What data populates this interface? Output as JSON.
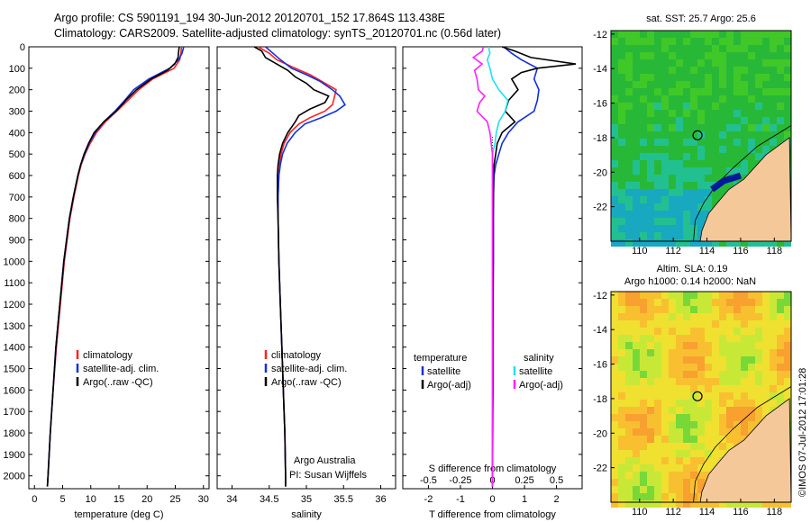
{
  "header": {
    "line1": "Argo profile: CS 5901191_194 30-Jun-2012 20120701_152 17.864S 113.438E",
    "line2": "Climatology: CARS2009. Satellite-adjusted climatology: synTS_20120701.nc (0.56d later)"
  },
  "colors": {
    "climatology": "#ff2020",
    "satellite": "#1030e0",
    "argo": "#000000",
    "satellite_salinity": "#20e0f0",
    "argo_salinity": "#ff20ff",
    "land": "#f5c89a"
  },
  "chart_data": [
    {
      "type": "line",
      "id": "temperature",
      "xlabel": "temperature (deg C)",
      "ylabel": "",
      "xlim": [
        -1,
        31
      ],
      "ylim": [
        2060,
        0
      ],
      "xticks": [
        "0",
        "5",
        "10",
        "15",
        "20",
        "25",
        "30"
      ],
      "yticks": [
        "0",
        "100",
        "200",
        "300",
        "400",
        "500",
        "600",
        "700",
        "800",
        "900",
        "1000",
        "1100",
        "1200",
        "1300",
        "1400",
        "1500",
        "1600",
        "1700",
        "1800",
        "1900",
        "2000"
      ],
      "legend": [
        "climatology",
        "satellite-adj. clim.",
        "Argo(..raw -QC)"
      ],
      "series": [
        {
          "name": "climatology",
          "depth": [
            0,
            30,
            60,
            100,
            150,
            200,
            250,
            300,
            350,
            400,
            450,
            500,
            550,
            600,
            700,
            800,
            900,
            1000,
            1200,
            1400,
            1600,
            1800,
            2000,
            2050
          ],
          "values": [
            26.1,
            26.0,
            25.8,
            24.8,
            21.0,
            18.5,
            16.6,
            14.6,
            12.6,
            11.0,
            9.9,
            9.0,
            8.3,
            7.8,
            7.0,
            6.3,
            5.8,
            5.3,
            4.6,
            3.9,
            3.3,
            2.8,
            2.4,
            2.3
          ]
        },
        {
          "name": "satellite-adj. clim.",
          "depth": [
            0,
            30,
            60,
            100,
            150,
            200,
            250,
            300,
            350,
            400,
            450,
            500,
            550,
            600,
            700,
            800,
            900,
            1000,
            1200,
            1400,
            1600,
            1800,
            2000,
            2050
          ],
          "values": [
            26.5,
            26.2,
            25.6,
            24.0,
            20.3,
            17.6,
            16.0,
            14.3,
            12.3,
            10.8,
            9.7,
            8.9,
            8.2,
            7.7,
            6.9,
            6.2,
            5.7,
            5.2,
            4.5,
            3.8,
            3.3,
            2.8,
            2.4,
            2.3
          ]
        },
        {
          "name": "Argo(..raw -QC)",
          "depth": [
            0,
            20,
            50,
            80,
            110,
            150,
            200,
            250,
            300,
            350,
            400,
            450,
            500,
            550,
            600,
            700,
            800,
            900,
            1000,
            1200,
            1400,
            1600,
            1800,
            2000,
            2050
          ],
          "values": [
            25.7,
            25.6,
            25.5,
            24.9,
            23.6,
            20.7,
            18.1,
            16.2,
            14.5,
            12.3,
            10.6,
            9.6,
            8.8,
            8.2,
            7.7,
            6.9,
            6.2,
            5.7,
            5.2,
            4.5,
            3.8,
            3.3,
            2.8,
            2.4,
            2.3
          ]
        }
      ]
    },
    {
      "type": "line",
      "id": "salinity",
      "xlabel": "salinity",
      "xlim": [
        33.8,
        36.2
      ],
      "ylim": [
        2060,
        0
      ],
      "xticks": [
        "34",
        "34.5",
        "35",
        "35.5",
        "36"
      ],
      "legend": [
        "climatology",
        "satellite-adj. clim.",
        "Argo(..raw -QC)"
      ],
      "annotations": [
        "Argo Australia",
        "PI: Susan Wijffels"
      ],
      "series": [
        {
          "name": "climatology",
          "depth": [
            0,
            30,
            60,
            100,
            130,
            160,
            200,
            230,
            270,
            300,
            330,
            360,
            400,
            450,
            500,
            550,
            600,
            700,
            800,
            1000,
            1200,
            1400,
            1600,
            1800,
            2000,
            2050
          ],
          "values": [
            34.35,
            34.5,
            34.6,
            34.85,
            35.05,
            35.2,
            35.4,
            35.38,
            35.35,
            35.25,
            35.05,
            34.9,
            34.78,
            34.7,
            34.66,
            34.64,
            34.63,
            34.62,
            34.62,
            34.63,
            34.65,
            34.67,
            34.69,
            34.71,
            34.72,
            34.72
          ]
        },
        {
          "name": "satellite-adj. clim.",
          "depth": [
            0,
            30,
            60,
            100,
            130,
            160,
            200,
            230,
            270,
            300,
            330,
            360,
            400,
            450,
            500,
            550,
            600,
            700,
            800,
            1000,
            1200,
            1400,
            1600,
            1800,
            2000,
            2050
          ],
          "values": [
            34.45,
            34.55,
            34.65,
            34.8,
            35.0,
            35.18,
            35.35,
            35.45,
            35.52,
            35.4,
            35.2,
            34.98,
            34.85,
            34.74,
            34.68,
            34.65,
            34.63,
            34.62,
            34.62,
            34.63,
            34.65,
            34.67,
            34.69,
            34.71,
            34.72,
            34.72
          ]
        },
        {
          "name": "Argo(..raw -QC)",
          "depth": [
            0,
            20,
            50,
            80,
            110,
            140,
            170,
            200,
            230,
            260,
            290,
            320,
            350,
            400,
            450,
            500,
            550,
            600,
            700,
            800,
            1000,
            1200,
            1400,
            1600,
            1800,
            2000,
            2050
          ],
          "values": [
            34.3,
            34.4,
            34.45,
            34.6,
            34.75,
            34.85,
            35.0,
            35.1,
            35.3,
            35.25,
            35.05,
            34.9,
            34.85,
            34.75,
            34.68,
            34.64,
            34.62,
            34.61,
            34.61,
            34.62,
            34.63,
            34.65,
            34.67,
            34.69,
            34.71,
            34.72,
            34.72
          ]
        }
      ]
    },
    {
      "type": "line",
      "id": "differences",
      "xlabel": "T difference from climatology",
      "xlabel_top": "S difference from climatology",
      "xlim": [
        -2.8,
        2.8
      ],
      "ylim": [
        2060,
        0
      ],
      "xticks": [
        "-2",
        "-1",
        "0",
        "1",
        "2"
      ],
      "xticks_s": [
        "-0.5",
        "-0.25",
        "0",
        "0.25",
        "0.5"
      ],
      "legend_headers": [
        "temperature",
        "salinity"
      ],
      "legend": [
        "satellite",
        "Argo(-adj)",
        "satellite",
        "Argo(-adj)"
      ],
      "series": [
        {
          "name": "satellite",
          "quantity": "temperature",
          "depth": [
            0,
            30,
            60,
            100,
            150,
            200,
            250,
            300,
            350,
            400,
            450,
            500,
            550,
            600,
            700,
            800,
            1000,
            1200,
            1400,
            1600,
            1800,
            2000,
            2050
          ],
          "values": [
            0.35,
            0.6,
            0.9,
            1.4,
            1.3,
            1.45,
            1.4,
            1.3,
            0.8,
            0.5,
            0.3,
            0.2,
            0.1,
            0.05,
            0.03,
            0.03,
            0.03,
            0.02,
            0.02,
            0.02,
            0.01,
            0.0,
            0.0
          ]
        },
        {
          "name": "Argo(-adj)",
          "quantity": "temperature",
          "depth": [
            0,
            20,
            50,
            80,
            100,
            120,
            150,
            200,
            250,
            300,
            350,
            400,
            450,
            500,
            550,
            600,
            700,
            800,
            1000,
            1200,
            1400,
            1600,
            1800,
            2000,
            2050
          ],
          "values": [
            0.3,
            0.7,
            1.2,
            2.6,
            1.4,
            0.9,
            0.6,
            0.8,
            0.5,
            0.4,
            0.7,
            0.3,
            0.15,
            0.1,
            0.05,
            0.03,
            0.03,
            0.02,
            0.02,
            0.02,
            0.01,
            0.01,
            0.0,
            0.0,
            0.0
          ]
        },
        {
          "name": "satellite",
          "quantity": "salinity",
          "depth": [
            0,
            30,
            60,
            100,
            150,
            200,
            250,
            300,
            350,
            400,
            450,
            500,
            600,
            700,
            800,
            1000,
            1200,
            1400,
            1600,
            1800,
            2000,
            2050
          ],
          "values": [
            -0.03,
            -0.02,
            -0.04,
            -0.02,
            0.0,
            0.05,
            0.12,
            0.1,
            0.05,
            0.03,
            0.02,
            0.0,
            0.0,
            0.0,
            0.0,
            0.0,
            0.0,
            0.0,
            0.0,
            0.0,
            0.0,
            0.0
          ]
        },
        {
          "name": "Argo(-adj)",
          "quantity": "salinity",
          "depth": [
            0,
            20,
            50,
            80,
            110,
            150,
            200,
            230,
            260,
            300,
            350,
            400,
            450,
            500,
            550,
            600,
            700,
            800,
            1000,
            1200,
            1400,
            1600,
            1800,
            2000,
            2050
          ],
          "values": [
            -0.07,
            -0.08,
            -0.15,
            -0.08,
            -0.14,
            -0.12,
            -0.11,
            -0.06,
            -0.1,
            -0.12,
            -0.04,
            -0.02,
            -0.01,
            0.0,
            0.0,
            0.0,
            0.0,
            0.0,
            0.0,
            0.0,
            0.0,
            0.0,
            0.0,
            0.0,
            0.0
          ]
        }
      ]
    },
    {
      "type": "heatmap",
      "id": "sst-map",
      "title": "sat. SST: 25.7 Argo: 25.6",
      "xticks": [
        "110",
        "112",
        "114",
        "116",
        "118"
      ],
      "yticks": [
        "-12",
        "-14",
        "-16",
        "-18",
        "-20",
        "-22"
      ],
      "xlim": [
        108.3,
        119.0
      ],
      "ylim": [
        -24.0,
        -11.8
      ],
      "profile_location": [
        113.438,
        -17.864
      ]
    },
    {
      "type": "heatmap",
      "id": "sla-map",
      "title_line1": "Altim. SLA: 0.19",
      "title_line2": "Argo h1000: 0.14 h2000: NaN",
      "xticks": [
        "110",
        "112",
        "114",
        "116",
        "118"
      ],
      "yticks": [
        "-12",
        "-14",
        "-16",
        "-18",
        "-20",
        "-22"
      ],
      "xlim": [
        108.3,
        119.0
      ],
      "ylim": [
        -24.0,
        -11.8
      ],
      "profile_location": [
        113.438,
        -17.864
      ]
    }
  ],
  "footer": {
    "stamp": "©IMOS 07-Jul-2012 17:01:28"
  }
}
